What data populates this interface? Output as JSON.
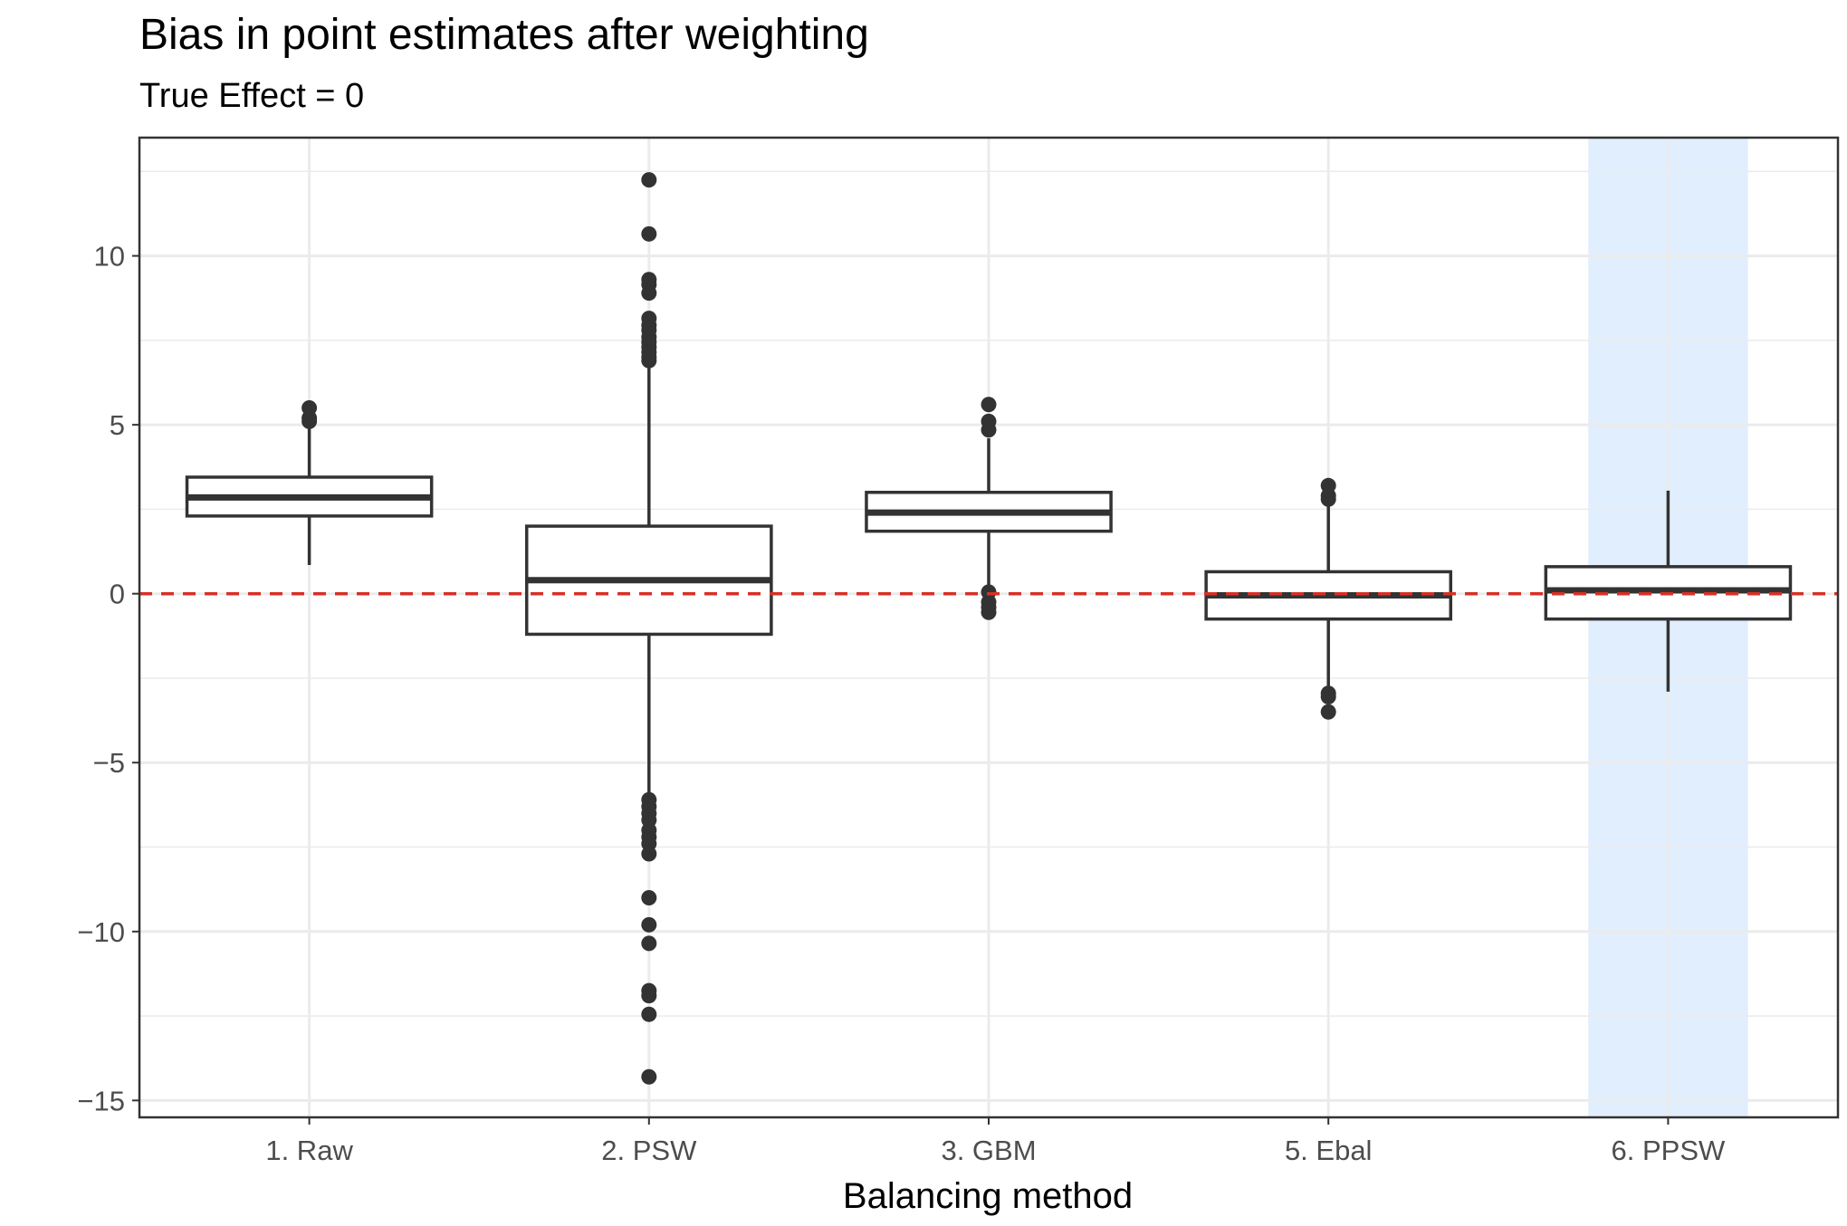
{
  "chart_data": {
    "type": "boxplot",
    "title": "Bias in point estimates after weighting",
    "subtitle": "True Effect = 0",
    "xlabel": "Balancing method",
    "ylabel": "",
    "ylim": [
      -15.5,
      13.5
    ],
    "y_ticks": [
      10,
      5,
      0,
      -5,
      -10,
      -15
    ],
    "y_tick_labels": [
      "10",
      "5",
      "0",
      "−5",
      "−10",
      "−15"
    ],
    "categories": [
      "1. Raw",
      "2. PSW",
      "3. GBM",
      "5. Ebal",
      "6. PPSW"
    ],
    "highlight_category": "6. PPSW",
    "reference_line": {
      "y": 0,
      "style": "dashed"
    },
    "grid": true,
    "colors": {
      "highlight": "#e1eefd",
      "reference_line": "#d93025",
      "box": "#333333",
      "grid": "#ebebeb"
    },
    "boxes": [
      {
        "category": "1. Raw",
        "q1": 2.3,
        "median": 2.85,
        "q3": 3.45,
        "whisker_low": 0.85,
        "whisker_high": 5.0,
        "outliers": [
          5.5,
          5.2,
          5.1
        ]
      },
      {
        "category": "2. PSW",
        "q1": -1.2,
        "median": 0.4,
        "q3": 2.0,
        "whisker_low": -6.0,
        "whisker_high": 6.8,
        "outliers": [
          12.25,
          10.65,
          9.3,
          9.15,
          8.9,
          8.15,
          7.95,
          7.8,
          7.6,
          7.45,
          7.3,
          7.15,
          7.0,
          6.9,
          -6.1,
          -6.3,
          -6.5,
          -6.7,
          -7.0,
          -7.2,
          -7.4,
          -7.7,
          -9.0,
          -9.8,
          -10.35,
          -11.75,
          -11.9,
          -12.45,
          -14.3
        ]
      },
      {
        "category": "3. GBM",
        "q1": 1.85,
        "median": 2.4,
        "q3": 3.0,
        "whisker_low": 0.2,
        "whisker_high": 4.6,
        "outliers": [
          5.6,
          5.1,
          4.85,
          0.05,
          -0.25,
          -0.4,
          -0.55
        ]
      },
      {
        "category": "5. Ebal",
        "q1": -0.75,
        "median": -0.05,
        "q3": 0.65,
        "whisker_low": -2.8,
        "whisker_high": 2.6,
        "outliers": [
          3.2,
          2.9,
          2.8,
          -2.95,
          -3.05,
          -3.5
        ]
      },
      {
        "category": "6. PPSW",
        "q1": -0.75,
        "median": 0.1,
        "q3": 0.8,
        "whisker_low": -2.9,
        "whisker_high": 3.05,
        "outliers": []
      }
    ]
  }
}
